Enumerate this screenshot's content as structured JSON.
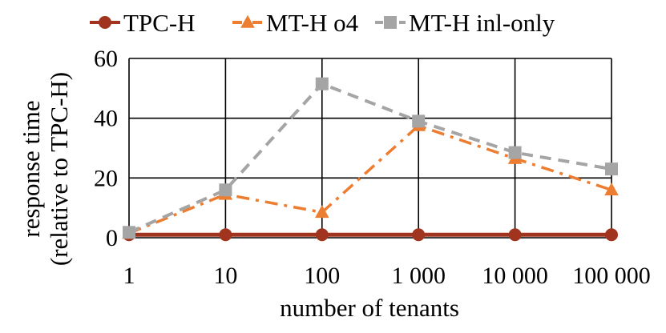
{
  "chart_data": {
    "type": "line",
    "categories": [
      "1",
      "10",
      "100",
      "1 000",
      "10 000",
      "100 000"
    ],
    "xlabel": "number of tenants",
    "ylabel_line1": "response time",
    "ylabel_line2": "(relative to TPC-H)",
    "ylim": [
      0,
      60
    ],
    "yticks": [
      0,
      20,
      40,
      60
    ],
    "grid": true,
    "legend_position": "top",
    "series": [
      {
        "name": "TPC-H",
        "values": [
          1,
          1,
          1,
          1,
          1,
          1
        ],
        "color": "#a0341f",
        "marker": "circle",
        "dash": "solid"
      },
      {
        "name": "MT-H o4",
        "values": [
          1.5,
          14.5,
          8.5,
          37.5,
          26.5,
          16
        ],
        "color": "#ed7d31",
        "marker": "triangle",
        "dash": "dash-dot"
      },
      {
        "name": "MT-H inl-only",
        "values": [
          1.8,
          16,
          51.5,
          39,
          28.5,
          23
        ],
        "color": "#a5a5a5",
        "marker": "square",
        "dash": "dash"
      }
    ]
  }
}
